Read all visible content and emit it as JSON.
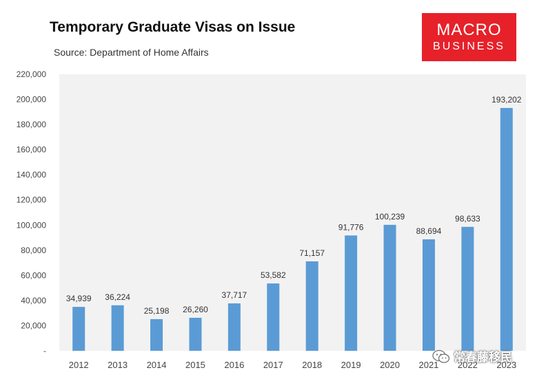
{
  "header": {
    "title": "Temporary Graduate Visas on Issue",
    "source": "Source: Department of Home Affairs"
  },
  "logo": {
    "line1": "MACRO",
    "line2": "BUSINESS",
    "color": "#e6212a"
  },
  "watermark": {
    "text": "常春藤移民",
    "icon": "wechat-icon"
  },
  "colors": {
    "bar": "#5b9bd5",
    "plot_bg": "#f2f2f2"
  },
  "chart_data": {
    "type": "bar",
    "title": "Temporary Graduate Visas on Issue",
    "subtitle": "Source: Department of Home Affairs",
    "categories": [
      "2012",
      "2013",
      "2014",
      "2015",
      "2016",
      "2017",
      "2018",
      "2019",
      "2020",
      "2021",
      "2022",
      "2023"
    ],
    "values": [
      34939,
      36224,
      25198,
      26260,
      37717,
      53582,
      71157,
      91776,
      100239,
      88694,
      98633,
      193202
    ],
    "value_labels": [
      "34,939",
      "36,224",
      "25,198",
      "26,260",
      "37,717",
      "53,582",
      "71,157",
      "91,776",
      "100,239",
      "88,694",
      "98,633",
      "193,202"
    ],
    "yticks": [
      0,
      20000,
      40000,
      60000,
      80000,
      100000,
      120000,
      140000,
      160000,
      180000,
      200000,
      220000
    ],
    "ytick_labels": [
      "-",
      "20,000",
      "40,000",
      "60,000",
      "80,000",
      "100,000",
      "120,000",
      "140,000",
      "160,000",
      "180,000",
      "200,000",
      "220,000"
    ],
    "ylim": [
      0,
      220000
    ],
    "xlabel": "",
    "ylabel": "",
    "grid": false,
    "legend": "none"
  }
}
